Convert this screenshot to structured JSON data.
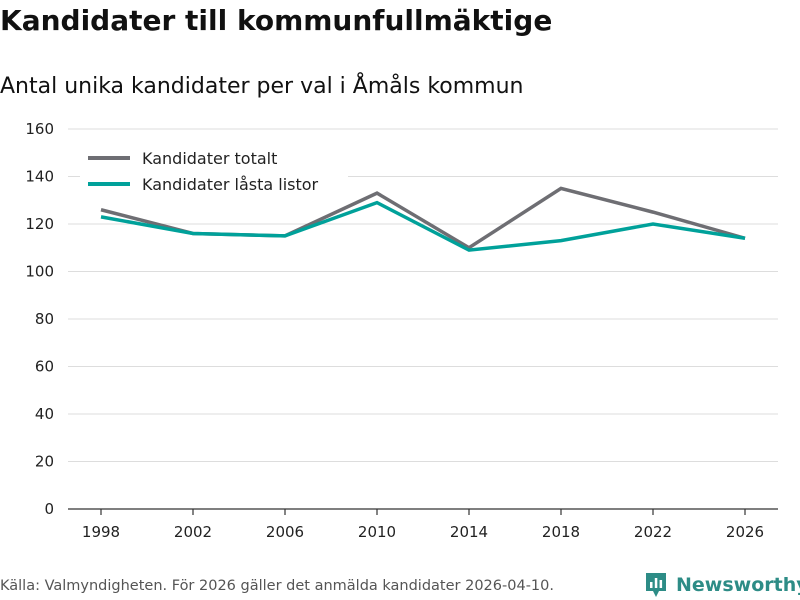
{
  "header": {
    "title": "Kandidater till kommunfullmäktige",
    "subtitle": "Antal unika kandidater per val i Åmåls kommun"
  },
  "footer": {
    "source": "Källa: Valmyndigheten. För 2026 gäller det anmälda kandidater 2026-04-10.",
    "brand": "Newsworthy"
  },
  "colors": {
    "series_total": "#6e6e73",
    "series_locked": "#00a19a",
    "grid": "#dddddd",
    "axis": "#333333",
    "brand": "#2d8c86"
  },
  "chart_data": {
    "type": "line",
    "x": [
      "1998",
      "2002",
      "2006",
      "2010",
      "2014",
      "2018",
      "2022",
      "2026"
    ],
    "series": [
      {
        "name": "Kandidater totalt",
        "values": [
          126,
          116,
          115,
          133,
          110,
          135,
          125,
          114
        ]
      },
      {
        "name": "Kandidater låsta listor",
        "values": [
          123,
          116,
          115,
          129,
          109,
          113,
          120,
          114
        ]
      }
    ],
    "ylim": [
      0,
      160
    ],
    "yticks": [
      0,
      20,
      40,
      60,
      80,
      100,
      120,
      140,
      160
    ],
    "grid": true,
    "legend": "top-left"
  }
}
